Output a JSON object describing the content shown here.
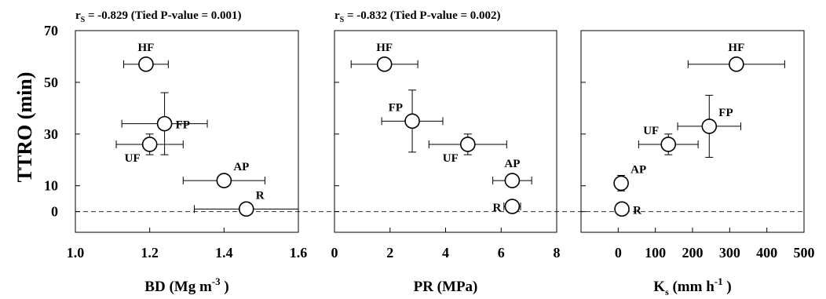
{
  "chart_data": {
    "type": "scatter",
    "ylabel": "TTRO (min)",
    "yticks": [
      0,
      10,
      30,
      50,
      70
    ],
    "ylim": [
      -8,
      70
    ],
    "reference_line": {
      "y": 0,
      "style": "dashed"
    },
    "panels": [
      {
        "stat_prefix": "r",
        "stat_sub": "S",
        "stat_text": " = -0.829 (Tied P-value = 0.001)",
        "xlabel": "BD (Mg m",
        "xlabel_sup": "-3",
        "xlabel_end": " )",
        "xlim": [
          1.0,
          1.6
        ],
        "xticks": [
          "1.0",
          "1.2",
          "1.4",
          "1.6"
        ],
        "points": [
          {
            "label": "HF",
            "x": 1.19,
            "y": 57,
            "xerr": 0.06,
            "yerr": 0,
            "label_pos": "top"
          },
          {
            "label": "FP",
            "x": 1.24,
            "y": 34,
            "xerr": 0.115,
            "yerr": 12,
            "label_pos": "right"
          },
          {
            "label": "UF",
            "x": 1.2,
            "y": 26,
            "xerr": 0.09,
            "yerr": 4,
            "label_pos": "bottom-left"
          },
          {
            "label": "AP",
            "x": 1.4,
            "y": 12,
            "xerr": 0.11,
            "yerr": 0,
            "label_pos": "top-right"
          },
          {
            "label": "R",
            "x": 1.46,
            "y": 1,
            "xerr": 0.14,
            "yerr": 0,
            "label_pos": "top-right"
          }
        ]
      },
      {
        "stat_prefix": "r",
        "stat_sub": "S",
        "stat_text": " = -0.832 (Tied P-value = 0.002)",
        "xlabel": "PR (MPa)",
        "xlabel_sup": "",
        "xlabel_end": "",
        "xlim": [
          0,
          8
        ],
        "xticks": [
          "0",
          "2",
          "4",
          "6",
          "8"
        ],
        "points": [
          {
            "label": "HF",
            "x": 1.8,
            "y": 57,
            "xerr": 1.2,
            "yerr": 0,
            "label_pos": "top"
          },
          {
            "label": "FP",
            "x": 2.8,
            "y": 35,
            "xerr": 1.1,
            "yerr": 12,
            "label_pos": "top-left"
          },
          {
            "label": "UF",
            "x": 4.8,
            "y": 26,
            "xerr": 1.4,
            "yerr": 4,
            "label_pos": "bottom-left"
          },
          {
            "label": "AP",
            "x": 6.4,
            "y": 12,
            "xerr": 0.7,
            "yerr": 0,
            "label_pos": "top"
          },
          {
            "label": "R",
            "x": 6.4,
            "y": 2,
            "xerr": 0.3,
            "yerr": 0,
            "label_pos": "left"
          }
        ]
      },
      {
        "stat_prefix": "",
        "stat_sub": "",
        "stat_text": "",
        "xlabel": "K",
        "xlabel_sub": "s",
        "xlabel_mid": " (mm h",
        "xlabel_sup": "-1",
        "xlabel_end": " )",
        "xlim": [
          -100,
          500
        ],
        "xticks": [
          "0",
          "100",
          "200",
          "300",
          "400",
          "500"
        ],
        "points": [
          {
            "label": "HF",
            "x": 318,
            "y": 57,
            "xerr": 130,
            "yerr": 0,
            "label_pos": "top"
          },
          {
            "label": "FP",
            "x": 245,
            "y": 33,
            "xerr": 85,
            "yerr": 12,
            "label_pos": "top-right"
          },
          {
            "label": "UF",
            "x": 135,
            "y": 26,
            "xerr": 80,
            "yerr": 4,
            "label_pos": "top-left"
          },
          {
            "label": "AP",
            "x": 8,
            "y": 11,
            "xerr": 0,
            "yerr": 3,
            "label_pos": "top-right"
          },
          {
            "label": "R",
            "x": 10,
            "y": 1,
            "xerr": 0,
            "yerr": 0,
            "label_pos": "right"
          }
        ]
      }
    ]
  }
}
